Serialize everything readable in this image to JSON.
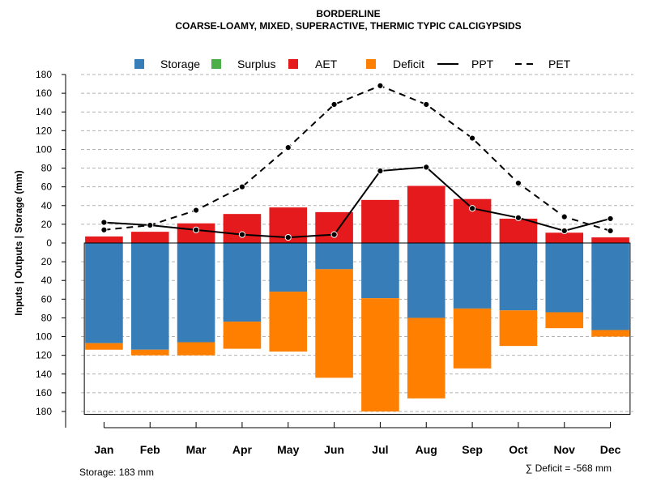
{
  "chart_data": {
    "type": "bar",
    "title": "BORDERLINE",
    "subtitle": "COARSE-LOAMY, MIXED, SUPERACTIVE, THERMIC TYPIC CALCIGYPSIDS",
    "ylabel": "Inputs | Outputs | Storage    (mm)",
    "ylim": [
      -183,
      180
    ],
    "ytick_values": [
      180,
      160,
      140,
      120,
      100,
      80,
      60,
      40,
      20,
      0,
      -20,
      -40,
      -60,
      -80,
      -100,
      -120,
      -140,
      -160,
      -180
    ],
    "ytick_labels": [
      "180",
      "160",
      "140",
      "120",
      "100",
      "80",
      "60",
      "40",
      "20",
      "0",
      "20",
      "40",
      "60",
      "80",
      "100",
      "120",
      "140",
      "160",
      "180"
    ],
    "grid": true,
    "legend_position": "top",
    "categories": [
      "Jan",
      "Feb",
      "Mar",
      "Apr",
      "May",
      "Jun",
      "Jul",
      "Aug",
      "Sep",
      "Oct",
      "Nov",
      "Dec"
    ],
    "series": [
      {
        "name": "Storage",
        "kind": "bar",
        "color": "#377EB8",
        "values": [
          107,
          114,
          106,
          84,
          52,
          28,
          59,
          80,
          70,
          72,
          74,
          93
        ]
      },
      {
        "name": "Surplus",
        "kind": "bar",
        "color": "#4DAF4A",
        "values": [
          0,
          0,
          0,
          0,
          0,
          0,
          0,
          0,
          0,
          0,
          0,
          0
        ]
      },
      {
        "name": "AET",
        "kind": "bar",
        "color": "#E41A1C",
        "values": [
          7,
          12,
          21,
          31,
          38,
          33,
          46,
          61,
          47,
          26,
          11,
          6
        ]
      },
      {
        "name": "Deficit",
        "kind": "bar",
        "color": "#FF7F00",
        "values": [
          7,
          6,
          14,
          29,
          64,
          116,
          121,
          86,
          64,
          38,
          17,
          7
        ]
      },
      {
        "name": "PPT",
        "kind": "line",
        "color": "#000000",
        "dash": "solid",
        "values": [
          22,
          19,
          14,
          9,
          6,
          9,
          77,
          81,
          37,
          27,
          13,
          26
        ]
      },
      {
        "name": "PET",
        "kind": "line",
        "color": "#000000",
        "dash": "dashed",
        "values": [
          14,
          19,
          35,
          60,
          102,
          148,
          168,
          148,
          112,
          64,
          28,
          13
        ]
      }
    ],
    "footer_left": "Storage: 183 mm",
    "footer_right": "∑ Deficit = -568 mm"
  }
}
